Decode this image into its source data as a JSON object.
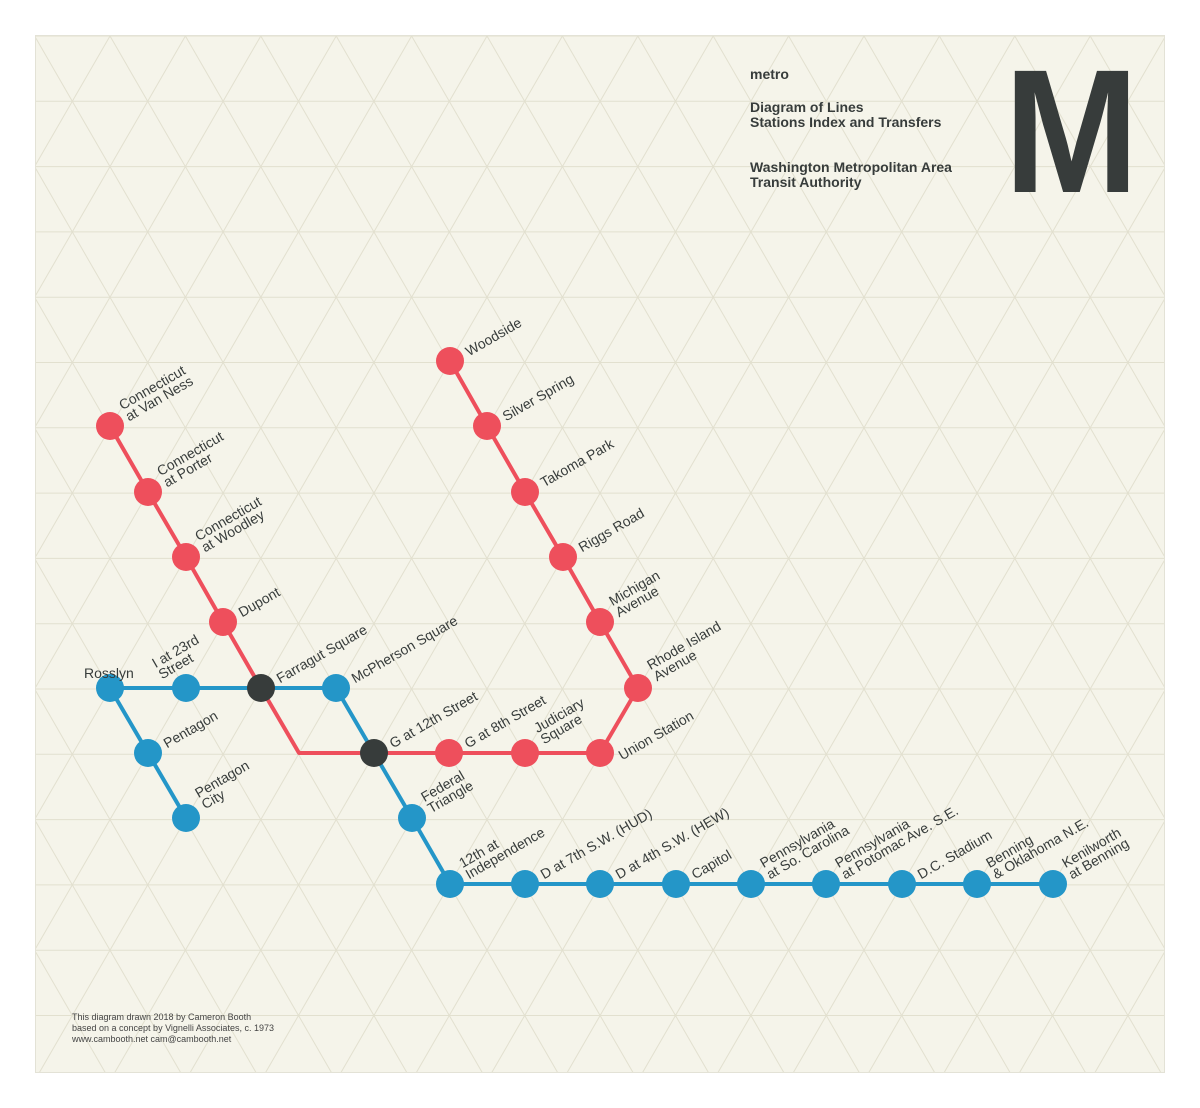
{
  "header": {
    "brand": "metro",
    "subtitle": "Diagram of Lines\nStations Index and Transfers",
    "authority": "Washington Metropolitan Area\nTransit Authority",
    "logo_letter": "M"
  },
  "credits": {
    "line1": "This diagram drawn 2018 by Cameron Booth",
    "line2": "based on a concept by Vignelli Associates, c. 1973",
    "line3": "www.cambooth.net  cam@cambooth.net"
  },
  "colors": {
    "background": "#f5f4ea",
    "red_line": "#ee4f5c",
    "blue_line": "#2496c8",
    "transfer": "#373c3b",
    "text": "#373c3b",
    "grid": "#e2e0cf"
  },
  "lines": [
    {
      "color": "red",
      "stations": [
        "Connecticut at Van Ness",
        "Connecticut at Porter",
        "Connecticut at Woodley",
        "Dupont",
        "Farragut Square",
        "G at 12th Street",
        "G at 8th Street",
        "Judiciary Square",
        "Union Station",
        "Rhode Island Avenue",
        "Michigan Avenue",
        "Riggs Road",
        "Takoma Park",
        "Silver Spring",
        "Woodside"
      ]
    },
    {
      "color": "blue",
      "stations": [
        "Rosslyn",
        "I at 23rd Street",
        "Farragut Square",
        "McPherson Square",
        "G at 12th Street",
        "Federal Triangle",
        "12th at Independence",
        "D at 7th S.W. (HUD)",
        "D at 4th S.W. (HEW)",
        "Capitol",
        "Pennsylvania at So. Carolina",
        "Pennsylvania at Potomac Ave. S.E.",
        "D.C. Stadium",
        "Benning & Oklahoma N.E.",
        "Kenilworth at Benning"
      ]
    },
    {
      "color": "blue",
      "stations": [
        "Rosslyn",
        "Pentagon",
        "Pentagon City"
      ]
    }
  ],
  "stations": [
    {
      "id": "van-ness",
      "label": "Connecticut\nat Van Ness",
      "type": "red"
    },
    {
      "id": "porter",
      "label": "Connecticut\nat Porter",
      "type": "red"
    },
    {
      "id": "woodley",
      "label": "Connecticut\nat Woodley",
      "type": "red"
    },
    {
      "id": "dupont",
      "label": "Dupont",
      "type": "red"
    },
    {
      "id": "farragut",
      "label": "Farragut Square",
      "type": "transfer"
    },
    {
      "id": "g12",
      "label": "G at 12th Street",
      "type": "transfer"
    },
    {
      "id": "g8",
      "label": "G at 8th Street",
      "type": "red"
    },
    {
      "id": "judiciary",
      "label": "Judiciary\nSquare",
      "type": "red"
    },
    {
      "id": "union",
      "label": "Union Station",
      "type": "red"
    },
    {
      "id": "rhode",
      "label": "Rhode Island\nAvenue",
      "type": "red"
    },
    {
      "id": "michigan",
      "label": "Michigan\nAvenue",
      "type": "red"
    },
    {
      "id": "riggs",
      "label": "Riggs Road",
      "type": "red"
    },
    {
      "id": "takoma",
      "label": "Takoma Park",
      "type": "red"
    },
    {
      "id": "silver",
      "label": "Silver Spring",
      "type": "red"
    },
    {
      "id": "woodside",
      "label": "Woodside",
      "type": "red"
    },
    {
      "id": "rosslyn",
      "label": "Rosslyn",
      "type": "blue"
    },
    {
      "id": "i23",
      "label": "I at 23rd\nStreet",
      "type": "blue"
    },
    {
      "id": "pentagon",
      "label": "Pentagon",
      "type": "blue"
    },
    {
      "id": "pentagon-city",
      "label": "Pentagon\nCity",
      "type": "blue"
    },
    {
      "id": "mcpherson",
      "label": "McPherson Square",
      "type": "blue"
    },
    {
      "id": "federal",
      "label": "Federal\nTriangle",
      "type": "blue"
    },
    {
      "id": "twelfth",
      "label": "12th at\nIndependence",
      "type": "blue"
    },
    {
      "id": "d7",
      "label": "D at 7th S.W. (HUD)",
      "type": "blue"
    },
    {
      "id": "d4",
      "label": "D at 4th S.W. (HEW)",
      "type": "blue"
    },
    {
      "id": "capitol",
      "label": "Capitol",
      "type": "blue"
    },
    {
      "id": "penn-sc",
      "label": "Pennsylvania\nat So. Carolina",
      "type": "blue"
    },
    {
      "id": "penn-pot",
      "label": "Pennsylvania\nat Potomac Ave. S.E.",
      "type": "blue"
    },
    {
      "id": "stadium",
      "label": "D.C. Stadium",
      "type": "blue"
    },
    {
      "id": "benning",
      "label": "Benning\n& Oklahoma N.E.",
      "type": "blue"
    },
    {
      "id": "kenilworth",
      "label": "Kenilworth\nat Benning",
      "type": "blue"
    }
  ]
}
